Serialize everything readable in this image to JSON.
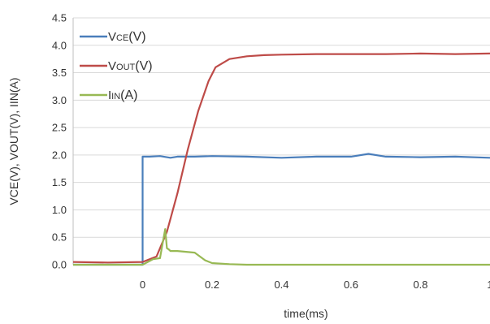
{
  "chart_data": {
    "type": "line",
    "xlabel": "time(ms)",
    "ylabel": "VCE(V), VOUT(V), IIN(A)",
    "xlim": [
      -0.2,
      1.0
    ],
    "ylim": [
      0,
      4.5
    ],
    "x_ticks": [
      "0",
      "0.2",
      "0.4",
      "0.6",
      "0.8",
      "1"
    ],
    "y_ticks": [
      "0.0",
      "0.5",
      "1.0",
      "1.5",
      "2.0",
      "2.5",
      "3.0",
      "3.5",
      "4.0",
      "4.5"
    ],
    "grid": "horizontal",
    "legend_position": "top-left",
    "series": [
      {
        "name": "Vce(V)",
        "legend_main": "V",
        "legend_sub": "CE",
        "legend_tail": "(V)",
        "color": "#4a7ebb",
        "x": [
          -0.2,
          0.0,
          0.0,
          0.02,
          0.05,
          0.08,
          0.1,
          0.15,
          0.2,
          0.3,
          0.4,
          0.5,
          0.6,
          0.65,
          0.7,
          0.8,
          0.9,
          1.0
        ],
        "y": [
          0.0,
          0.0,
          1.97,
          1.97,
          1.98,
          1.95,
          1.97,
          1.97,
          1.98,
          1.97,
          1.95,
          1.97,
          1.97,
          2.02,
          1.97,
          1.96,
          1.97,
          1.95
        ]
      },
      {
        "name": "Vout(V)",
        "legend_main": "V",
        "legend_sub": "OUT",
        "legend_tail": "(V)",
        "color": "#be4b48",
        "x": [
          -0.2,
          -0.1,
          0.0,
          0.04,
          0.07,
          0.1,
          0.13,
          0.16,
          0.19,
          0.21,
          0.25,
          0.3,
          0.35,
          0.4,
          0.5,
          0.6,
          0.7,
          0.8,
          0.9,
          1.0
        ],
        "y": [
          0.05,
          0.04,
          0.05,
          0.15,
          0.6,
          1.3,
          2.1,
          2.8,
          3.35,
          3.6,
          3.75,
          3.8,
          3.82,
          3.83,
          3.84,
          3.84,
          3.84,
          3.85,
          3.84,
          3.85
        ]
      },
      {
        "name": "Iin(A)",
        "legend_main": "I",
        "legend_sub": "IN",
        "legend_tail": "(A)",
        "color": "#98b954",
        "x": [
          -0.2,
          0.0,
          0.03,
          0.05,
          0.065,
          0.07,
          0.075,
          0.08,
          0.1,
          0.15,
          0.18,
          0.2,
          0.25,
          0.3,
          1.0
        ],
        "y": [
          0.0,
          0.0,
          0.1,
          0.12,
          0.65,
          0.3,
          0.28,
          0.25,
          0.25,
          0.22,
          0.08,
          0.03,
          0.01,
          0.0,
          0.0
        ]
      }
    ]
  }
}
